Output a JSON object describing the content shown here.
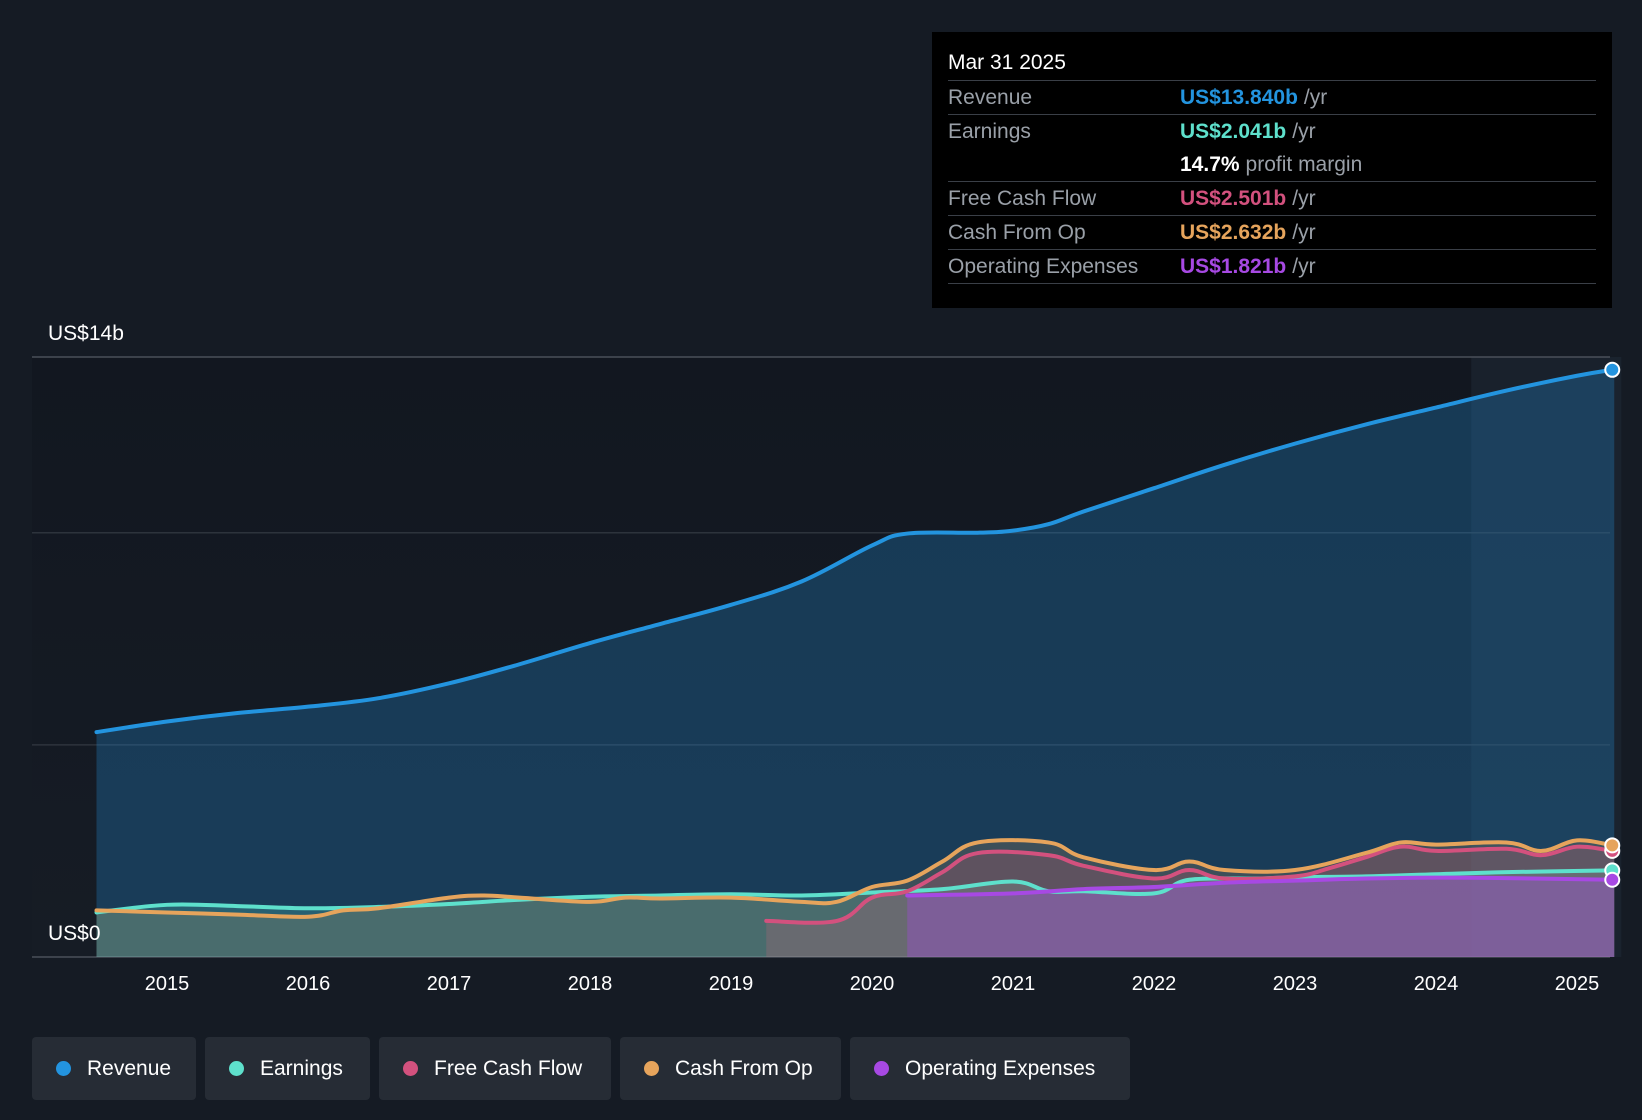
{
  "chart_data": {
    "type": "area",
    "y_axis": {
      "top_label": "US$14b",
      "bottom_label": "US$0",
      "ylim": [
        0,
        14
      ]
    },
    "x_ticks": [
      "2015",
      "2016",
      "2017",
      "2018",
      "2019",
      "2020",
      "2021",
      "2022",
      "2023",
      "2024",
      "2025"
    ],
    "xlim": [
      2014.05,
      2025.3
    ],
    "highlight_start": 2024.25,
    "series": [
      {
        "name": "Revenue",
        "color": "#2394df",
        "points": [
          [
            2014.5,
            5.3
          ],
          [
            2015.0,
            5.55
          ],
          [
            2015.5,
            5.75
          ],
          [
            2016.0,
            5.9
          ],
          [
            2016.5,
            6.1
          ],
          [
            2017.0,
            6.45
          ],
          [
            2017.5,
            6.9
          ],
          [
            2018.0,
            7.4
          ],
          [
            2018.5,
            7.85
          ],
          [
            2019.0,
            8.3
          ],
          [
            2019.5,
            8.85
          ],
          [
            2020.0,
            9.7
          ],
          [
            2020.25,
            9.98
          ],
          [
            2020.75,
            10.0
          ],
          [
            2021.0,
            10.05
          ],
          [
            2021.25,
            10.2
          ],
          [
            2021.5,
            10.5
          ],
          [
            2022.0,
            11.05
          ],
          [
            2022.5,
            11.6
          ],
          [
            2023.0,
            12.1
          ],
          [
            2023.5,
            12.55
          ],
          [
            2024.0,
            12.95
          ],
          [
            2024.5,
            13.35
          ],
          [
            2025.0,
            13.7
          ],
          [
            2025.25,
            13.84
          ]
        ]
      },
      {
        "name": "Earnings",
        "color": "#5ee0cc",
        "points": [
          [
            2014.5,
            1.05
          ],
          [
            2015.0,
            1.23
          ],
          [
            2015.5,
            1.2
          ],
          [
            2016.0,
            1.15
          ],
          [
            2016.5,
            1.18
          ],
          [
            2017.0,
            1.25
          ],
          [
            2017.5,
            1.35
          ],
          [
            2018.0,
            1.42
          ],
          [
            2018.5,
            1.45
          ],
          [
            2019.0,
            1.48
          ],
          [
            2019.5,
            1.45
          ],
          [
            2020.0,
            1.52
          ],
          [
            2020.5,
            1.6
          ],
          [
            2021.0,
            1.78
          ],
          [
            2021.25,
            1.55
          ],
          [
            2021.5,
            1.55
          ],
          [
            2022.0,
            1.5
          ],
          [
            2022.25,
            1.82
          ],
          [
            2022.75,
            1.85
          ],
          [
            2023.0,
            1.88
          ],
          [
            2023.5,
            1.9
          ],
          [
            2024.0,
            1.95
          ],
          [
            2024.5,
            2.0
          ],
          [
            2025.25,
            2.041
          ]
        ]
      },
      {
        "name": "Free Cash Flow",
        "color": "#d3517e",
        "points": [
          [
            2019.25,
            0.85
          ],
          [
            2019.75,
            0.85
          ],
          [
            2020.0,
            1.4
          ],
          [
            2020.25,
            1.55
          ],
          [
            2020.5,
            2.0
          ],
          [
            2020.75,
            2.45
          ],
          [
            2021.25,
            2.4
          ],
          [
            2021.5,
            2.15
          ],
          [
            2022.0,
            1.85
          ],
          [
            2022.25,
            2.05
          ],
          [
            2022.5,
            1.85
          ],
          [
            2023.0,
            1.9
          ],
          [
            2023.25,
            2.1
          ],
          [
            2023.5,
            2.35
          ],
          [
            2023.75,
            2.6
          ],
          [
            2024.0,
            2.5
          ],
          [
            2024.5,
            2.55
          ],
          [
            2024.75,
            2.4
          ],
          [
            2025.0,
            2.6
          ],
          [
            2025.25,
            2.501
          ]
        ]
      },
      {
        "name": "Cash From Op",
        "color": "#e6a45c",
        "points": [
          [
            2014.5,
            1.1
          ],
          [
            2015.0,
            1.05
          ],
          [
            2015.5,
            1.0
          ],
          [
            2016.0,
            0.95
          ],
          [
            2016.25,
            1.1
          ],
          [
            2016.5,
            1.15
          ],
          [
            2017.0,
            1.4
          ],
          [
            2017.25,
            1.45
          ],
          [
            2017.5,
            1.4
          ],
          [
            2018.0,
            1.3
          ],
          [
            2018.25,
            1.4
          ],
          [
            2018.5,
            1.38
          ],
          [
            2019.0,
            1.4
          ],
          [
            2019.5,
            1.3
          ],
          [
            2019.75,
            1.3
          ],
          [
            2020.0,
            1.65
          ],
          [
            2020.25,
            1.8
          ],
          [
            2020.5,
            2.25
          ],
          [
            2020.75,
            2.7
          ],
          [
            2021.25,
            2.7
          ],
          [
            2021.5,
            2.35
          ],
          [
            2022.0,
            2.05
          ],
          [
            2022.25,
            2.25
          ],
          [
            2022.5,
            2.05
          ],
          [
            2023.0,
            2.05
          ],
          [
            2023.5,
            2.45
          ],
          [
            2023.75,
            2.7
          ],
          [
            2024.0,
            2.65
          ],
          [
            2024.5,
            2.7
          ],
          [
            2024.75,
            2.5
          ],
          [
            2025.0,
            2.75
          ],
          [
            2025.25,
            2.632
          ]
        ]
      },
      {
        "name": "Operating Expenses",
        "color": "#a749e3",
        "points": [
          [
            2020.25,
            1.45
          ],
          [
            2021.0,
            1.5
          ],
          [
            2021.5,
            1.6
          ],
          [
            2022.0,
            1.65
          ],
          [
            2022.5,
            1.75
          ],
          [
            2023.0,
            1.8
          ],
          [
            2023.5,
            1.85
          ],
          [
            2024.0,
            1.87
          ],
          [
            2024.5,
            1.86
          ],
          [
            2025.25,
            1.821
          ]
        ]
      }
    ]
  },
  "tooltip": {
    "date": "Mar 31 2025",
    "rows": [
      {
        "label": "Revenue",
        "value": "US$13.840b",
        "unit": "/yr",
        "color": "#2394df"
      },
      {
        "label": "Earnings",
        "value": "US$2.041b",
        "unit": "/yr",
        "color": "#5ee0cc"
      },
      {
        "label": "",
        "value": "14.7%",
        "unit": "profit margin",
        "color": "#ffffff"
      },
      {
        "label": "Free Cash Flow",
        "value": "US$2.501b",
        "unit": "/yr",
        "color": "#d3517e"
      },
      {
        "label": "Cash From Op",
        "value": "US$2.632b",
        "unit": "/yr",
        "color": "#e6a45c"
      },
      {
        "label": "Operating Expenses",
        "value": "US$1.821b",
        "unit": "/yr",
        "color": "#a749e3"
      }
    ]
  },
  "legend": [
    {
      "label": "Revenue",
      "color": "#2394df"
    },
    {
      "label": "Earnings",
      "color": "#5ee0cc"
    },
    {
      "label": "Free Cash Flow",
      "color": "#d3517e"
    },
    {
      "label": "Cash From Op",
      "color": "#e6a45c"
    },
    {
      "label": "Operating Expenses",
      "color": "#a749e3"
    }
  ]
}
